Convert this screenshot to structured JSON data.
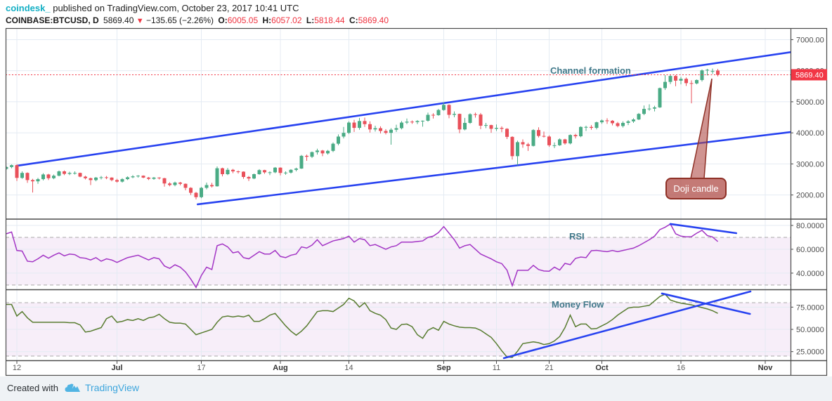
{
  "header": {
    "author": "coindesk_",
    "published": "published on TradingView.com, October 23, 2017 10:41 UTC"
  },
  "legend": {
    "symbol": "COINBASE:BTCUSD, D",
    "price": "5869.40",
    "change": "−135.65 (−2.26%)",
    "o_label": "O:",
    "o": "6005.05",
    "h_label": "H:",
    "h": "6057.02",
    "l_label": "L:",
    "l": "5818.44",
    "c_label": "C:",
    "c": "5869.40"
  },
  "annotations": {
    "channel": "Channel formation",
    "rsi": "RSI",
    "money_flow": "Money Flow",
    "doji": "Doji candle"
  },
  "footer": {
    "created": "Created with",
    "brand": "TradingView"
  },
  "colors": {
    "up": "#4aab85",
    "down": "#e9505a",
    "trend_blue": "#2742f0",
    "rsi_line": "#a335c5",
    "mf_line": "#587c30",
    "band_fill": "rgba(186,104,200,0.11)",
    "dashed": "#a8a8a8",
    "last_price": "#f23645",
    "grid": "#e4ebf3",
    "border": "#4a4a4a",
    "axis_text": "#4c4c4c",
    "accent_teal": "#41798a",
    "brand_blue": "#3ea6dd",
    "author_cyan": "#15b0c5"
  },
  "chart_data": {
    "type": "candlestick+indicators",
    "symbol": "COINBASE:BTCUSD",
    "interval": "D",
    "start_date": "2017-06-10",
    "end_date": "2017-10-23",
    "last_price": {
      "value": 5869.4,
      "label": "5869.40"
    },
    "price_axis": {
      "min": 1246,
      "max": 7349,
      "ticks": [
        {
          "label": "7000.00",
          "value": 7000
        },
        {
          "label": "6000.00",
          "value": 6000
        },
        {
          "label": "5000.00",
          "value": 5000
        },
        {
          "label": "4000.00",
          "value": 4000
        },
        {
          "label": "3000.00",
          "value": 3000
        },
        {
          "label": "2000.00",
          "value": 2000
        }
      ]
    },
    "rsi_axis": {
      "min": 27,
      "max": 84.7,
      "ticks": [
        {
          "label": "80.0000",
          "value": 80
        },
        {
          "label": "60.0000",
          "value": 60
        },
        {
          "label": "40.0000",
          "value": 40
        }
      ],
      "band": [
        30,
        70
      ]
    },
    "mf_axis": {
      "min": 15.3,
      "max": 94.2,
      "ticks": [
        {
          "label": "75.0000",
          "value": 75
        },
        {
          "label": "50.0000",
          "value": 50
        },
        {
          "label": "25.0000",
          "value": 25
        }
      ],
      "band": [
        20,
        80
      ]
    },
    "time_axis": [
      {
        "label": "12",
        "day": 2,
        "month": false
      },
      {
        "label": "Jul",
        "day": 21,
        "month": true
      },
      {
        "label": "17",
        "day": 37,
        "month": false
      },
      {
        "label": "Aug",
        "day": 52,
        "month": true
      },
      {
        "label": "14",
        "day": 65,
        "month": false
      },
      {
        "label": "Sep",
        "day": 83,
        "month": true
      },
      {
        "label": "11",
        "day": 93,
        "month": false
      },
      {
        "label": "21",
        "day": 103,
        "month": false
      },
      {
        "label": "Oct",
        "day": 113,
        "month": true
      },
      {
        "label": "16",
        "day": 128,
        "month": false
      },
      {
        "label": "Nov",
        "day": 144,
        "month": true
      }
    ],
    "candles": [
      [
        2840,
        2930,
        2810,
        2900
      ],
      [
        2900,
        2980,
        2860,
        2960
      ],
      [
        2960,
        2980,
        2450,
        2550
      ],
      [
        2550,
        2760,
        2520,
        2710
      ],
      [
        2710,
        2730,
        2390,
        2480
      ],
      [
        2480,
        2520,
        2080,
        2440
      ],
      [
        2440,
        2550,
        2360,
        2510
      ],
      [
        2510,
        2700,
        2470,
        2660
      ],
      [
        2660,
        2680,
        2480,
        2540
      ],
      [
        2540,
        2660,
        2510,
        2620
      ],
      [
        2620,
        2790,
        2600,
        2760
      ],
      [
        2760,
        2790,
        2640,
        2680
      ],
      [
        2680,
        2750,
        2640,
        2710
      ],
      [
        2710,
        2760,
        2660,
        2710
      ],
      [
        2710,
        2720,
        2570,
        2590
      ],
      [
        2590,
        2620,
        2500,
        2540
      ],
      [
        2540,
        2560,
        2320,
        2480
      ],
      [
        2480,
        2580,
        2440,
        2560
      ],
      [
        2560,
        2610,
        2500,
        2570
      ],
      [
        2570,
        2610,
        2510,
        2560
      ],
      [
        2560,
        2570,
        2440,
        2480
      ],
      [
        2480,
        2520,
        2400,
        2430
      ],
      [
        2430,
        2540,
        2400,
        2510
      ],
      [
        2510,
        2600,
        2480,
        2570
      ],
      [
        2570,
        2640,
        2540,
        2600
      ],
      [
        2600,
        2640,
        2560,
        2620
      ],
      [
        2620,
        2630,
        2540,
        2560
      ],
      [
        2560,
        2580,
        2480,
        2520
      ],
      [
        2520,
        2580,
        2490,
        2560
      ],
      [
        2560,
        2570,
        2500,
        2540
      ],
      [
        2540,
        2550,
        2270,
        2370
      ],
      [
        2370,
        2410,
        2280,
        2320
      ],
      [
        2320,
        2430,
        2280,
        2400
      ],
      [
        2400,
        2420,
        2310,
        2360
      ],
      [
        2360,
        2370,
        2150,
        2230
      ],
      [
        2230,
        2250,
        2000,
        2070
      ],
      [
        2070,
        2100,
        1860,
        1930
      ],
      [
        1930,
        2260,
        1900,
        2230
      ],
      [
        2230,
        2400,
        2180,
        2320
      ],
      [
        2320,
        2390,
        2240,
        2280
      ],
      [
        2280,
        2920,
        2270,
        2860
      ],
      [
        2860,
        2880,
        2600,
        2670
      ],
      [
        2670,
        2870,
        2640,
        2810
      ],
      [
        2810,
        2840,
        2700,
        2760
      ],
      [
        2760,
        2790,
        2690,
        2750
      ],
      [
        2750,
        2760,
        2520,
        2580
      ],
      [
        2580,
        2610,
        2450,
        2530
      ],
      [
        2530,
        2690,
        2510,
        2670
      ],
      [
        2670,
        2830,
        2650,
        2800
      ],
      [
        2800,
        2810,
        2680,
        2730
      ],
      [
        2730,
        2760,
        2640,
        2730
      ],
      [
        2730,
        2900,
        2700,
        2880
      ],
      [
        2880,
        2890,
        2630,
        2710
      ],
      [
        2710,
        2760,
        2650,
        2720
      ],
      [
        2720,
        2830,
        2690,
        2810
      ],
      [
        2810,
        2880,
        2760,
        2850
      ],
      [
        2850,
        3290,
        2840,
        3260
      ],
      [
        3260,
        3300,
        3100,
        3230
      ],
      [
        3230,
        3400,
        3190,
        3380
      ],
      [
        3380,
        3490,
        3300,
        3430
      ],
      [
        3430,
        3450,
        3250,
        3340
      ],
      [
        3340,
        3450,
        3300,
        3420
      ],
      [
        3420,
        3690,
        3380,
        3650
      ],
      [
        3650,
        3950,
        3600,
        3880
      ],
      [
        3880,
        4190,
        3820,
        4000
      ],
      [
        4000,
        4370,
        3960,
        4330
      ],
      [
        4330,
        4420,
        4030,
        4160
      ],
      [
        4160,
        4480,
        4100,
        4380
      ],
      [
        4380,
        4490,
        4190,
        4280
      ],
      [
        4280,
        4370,
        4010,
        4110
      ],
      [
        4110,
        4230,
        4040,
        4150
      ],
      [
        4150,
        4210,
        3980,
        4060
      ],
      [
        4060,
        4120,
        3950,
        4000
      ],
      [
        4000,
        4150,
        3620,
        4100
      ],
      [
        4100,
        4260,
        4030,
        4150
      ],
      [
        4150,
        4380,
        4110,
        4330
      ],
      [
        4330,
        4460,
        4280,
        4360
      ],
      [
        4360,
        4400,
        4290,
        4345
      ],
      [
        4345,
        4410,
        4280,
        4380
      ],
      [
        4380,
        4400,
        4200,
        4390
      ],
      [
        4390,
        4650,
        4360,
        4580
      ],
      [
        4580,
        4630,
        4460,
        4570
      ],
      [
        4570,
        4770,
        4550,
        4735
      ],
      [
        4735,
        4980,
        4710,
        4900
      ],
      [
        4900,
        4920,
        4470,
        4580
      ],
      [
        4580,
        4690,
        4500,
        4610
      ],
      [
        4610,
        4620,
        3990,
        4110
      ],
      [
        4110,
        4480,
        4080,
        4320
      ],
      [
        4320,
        4630,
        4290,
        4600
      ],
      [
        4600,
        4650,
        4490,
        4590
      ],
      [
        4590,
        4640,
        4120,
        4230
      ],
      [
        4230,
        4320,
        4150,
        4250
      ],
      [
        4250,
        4260,
        4000,
        4130
      ],
      [
        4130,
        4270,
        4060,
        4160
      ],
      [
        4160,
        4210,
        4020,
        4130
      ],
      [
        4130,
        4150,
        3800,
        3870
      ],
      [
        3870,
        3890,
        3140,
        3250
      ],
      [
        3250,
        3750,
        2950,
        3700
      ],
      [
        3700,
        3790,
        3520,
        3630
      ],
      [
        3630,
        3680,
        3420,
        3580
      ],
      [
        3580,
        4120,
        3560,
        4090
      ],
      [
        4090,
        4180,
        3850,
        3900
      ],
      [
        3900,
        4040,
        3850,
        3880
      ],
      [
        3880,
        3920,
        3550,
        3600
      ],
      [
        3600,
        3690,
        3510,
        3600
      ],
      [
        3600,
        3820,
        3580,
        3790
      ],
      [
        3790,
        3810,
        3620,
        3660
      ],
      [
        3660,
        3950,
        3630,
        3930
      ],
      [
        3930,
        3970,
        3820,
        3890
      ],
      [
        3890,
        4210,
        3860,
        4190
      ],
      [
        4190,
        4230,
        4060,
        4190
      ],
      [
        4190,
        4250,
        4100,
        4160
      ],
      [
        4160,
        4360,
        4110,
        4340
      ],
      [
        4340,
        4430,
        4290,
        4400
      ],
      [
        4400,
        4470,
        4290,
        4390
      ],
      [
        4390,
        4410,
        4240,
        4310
      ],
      [
        4310,
        4350,
        4180,
        4220
      ],
      [
        4220,
        4370,
        4170,
        4320
      ],
      [
        4320,
        4410,
        4250,
        4370
      ],
      [
        4370,
        4470,
        4320,
        4430
      ],
      [
        4430,
        4640,
        4410,
        4610
      ],
      [
        4610,
        4880,
        4570,
        4770
      ],
      [
        4770,
        4920,
        4710,
        4780
      ],
      [
        4780,
        4870,
        4690,
        4820
      ],
      [
        4820,
        5460,
        4800,
        5440
      ],
      [
        5440,
        5860,
        5380,
        5640
      ],
      [
        5640,
        5870,
        5570,
        5830
      ],
      [
        5830,
        5860,
        5500,
        5680
      ],
      [
        5680,
        5800,
        5560,
        5740
      ],
      [
        5740,
        5780,
        5510,
        5600
      ],
      [
        5600,
        5690,
        4950,
        5590
      ],
      [
        5590,
        5720,
        5560,
        5700
      ],
      [
        5700,
        6040,
        5650,
        6010
      ],
      [
        6010,
        6060,
        5850,
        6030
      ],
      [
        5985,
        6070,
        5900,
        5990
      ],
      [
        6005,
        6057,
        5818,
        5869
      ]
    ],
    "rsi": [
      73,
      74.5,
      59,
      58.5,
      50,
      49.5,
      52,
      55,
      52.5,
      55,
      57,
      54.5,
      56,
      55.5,
      53,
      52.5,
      51,
      53,
      50,
      52,
      51,
      49,
      51,
      53,
      54,
      55,
      53,
      51,
      53,
      52,
      46,
      44,
      47,
      45,
      41,
      35,
      28,
      38,
      45,
      43,
      63,
      64.5,
      62,
      57,
      58,
      53,
      52,
      55,
      58,
      56,
      56,
      59,
      54,
      53,
      55,
      56,
      62,
      61,
      63.5,
      68,
      63,
      65,
      67,
      68,
      69,
      71,
      66,
      69,
      68,
      63,
      64,
      62,
      60,
      62,
      63,
      66,
      66,
      66,
      66.5,
      67,
      70,
      71,
      74,
      79,
      73.5,
      68,
      61,
      63,
      64,
      60,
      56,
      54,
      52,
      49.5,
      48,
      42.5,
      29.5,
      42.4,
      42.4,
      42.4,
      46.5,
      43,
      41.8,
      41.6,
      45,
      42.6,
      48.2,
      47.1,
      52.4,
      53.5,
      53,
      58.8,
      59.1,
      58.5,
      58,
      59,
      58,
      59,
      60,
      61,
      63,
      65.5,
      68,
      71,
      76.5,
      78.5,
      81.2,
      73,
      71,
      70.4,
      70.6,
      73.5,
      75.9,
      71.5,
      70.3,
      66.5
    ],
    "money_flow": [
      78,
      78,
      65,
      70,
      63,
      58,
      58,
      58,
      58,
      58,
      58,
      58,
      57.5,
      57.5,
      55,
      47,
      48,
      50,
      52,
      62,
      65,
      58,
      59,
      61,
      60,
      62,
      60,
      63,
      64,
      67,
      62,
      58,
      57,
      57,
      56,
      50,
      44,
      46,
      48,
      50,
      58,
      64,
      65,
      64,
      65,
      64,
      66,
      59,
      59,
      62,
      66,
      68,
      61,
      54,
      48,
      43.5,
      48,
      54,
      62,
      70,
      71,
      71,
      70,
      74,
      78,
      85,
      82,
      75,
      80,
      71,
      68,
      66,
      61,
      51.5,
      50,
      55.5,
      56,
      53,
      44,
      40,
      49,
      52,
      49,
      59,
      56,
      54,
      52.5,
      52,
      52,
      51.5,
      49,
      45,
      41,
      34,
      26,
      19,
      18.5,
      25.5,
      34,
      35,
      36,
      35,
      33,
      34,
      37,
      42,
      52,
      66,
      53,
      56,
      56,
      50.5,
      51,
      54,
      57,
      61,
      66,
      70,
      74,
      75,
      75,
      76,
      77,
      82,
      87,
      89.5,
      83,
      81,
      79.5,
      78.5,
      77.5,
      76,
      74.5,
      73,
      71,
      68
    ],
    "trendlines": {
      "channel_upper": {
        "panel": "price",
        "d1": 2,
        "v1": 2940,
        "d2": 149,
        "v2": 6600
      },
      "channel_lower": {
        "panel": "price",
        "d1": 36.3,
        "v1": 1700,
        "d2": 149,
        "v2": 4030
      },
      "rsi_trend": {
        "panel": "rsi",
        "d1": 126,
        "v1": 81.2,
        "d2": 138.5,
        "v2": 73.5
      },
      "mf_trend_up": {
        "panel": "mf",
        "d1": 94.4,
        "v1": 17.7,
        "d2": 141.2,
        "v2": 92.6
      },
      "mf_trend_down": {
        "panel": "mf",
        "d1": 124.4,
        "v1": 90.3,
        "d2": 141.1,
        "v2": 67.4
      }
    }
  }
}
